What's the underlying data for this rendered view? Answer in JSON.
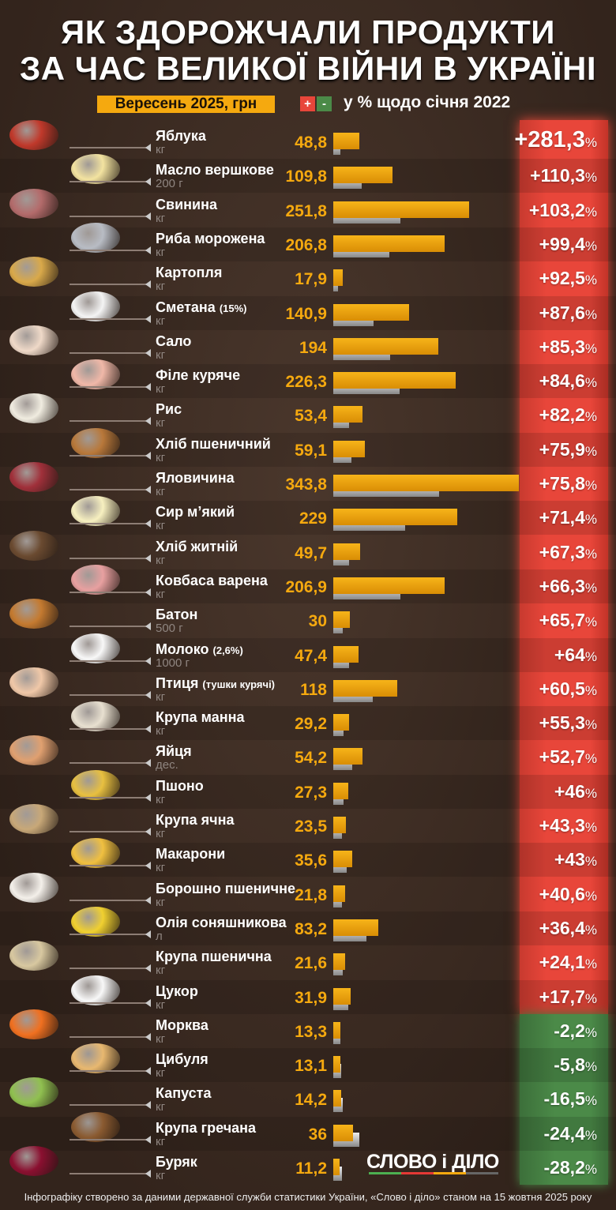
{
  "title_line1": "ЯК ЗДОРОЖЧАЛИ ПРОДУКТИ",
  "title_line2": "ЗА ЧАС ВЕЛИКОЇ ВІЙНИ В УКРАЇНІ",
  "legend": {
    "price_label": "Вересень 2025, грн",
    "plus": "+",
    "minus": "-",
    "pct_label": "у % щодо січня 2022"
  },
  "colors": {
    "bar": "#f5a90f",
    "increase": "#e8463a",
    "decrease": "#4b8a48",
    "background": "#3b2b22"
  },
  "logo": "СЛОВО і ДІЛО",
  "footer": "Інфографіку створено за даними державної служби статистики України, «Слово і діло» станом на 15 жовтня 2025 року",
  "chart_data": {
    "type": "bar",
    "title": "ЯК ЗДОРОЖЧАЛИ ПРОДУКТИ ЗА ЧАС ВЕЛИКОЇ ВІЙНИ В УКРАЇНІ",
    "orientation": "horizontal",
    "series": [
      {
        "name": "Вересень 2025, грн"
      },
      {
        "name": "у % щодо січня 2022"
      }
    ],
    "rows": [
      {
        "name": "Яблука",
        "note": "",
        "unit": "кг",
        "price": "48,8",
        "value": 48.8,
        "pct": "+281,3",
        "pct_value": 281.3,
        "color": "#c0392b"
      },
      {
        "name": "Масло вершкове",
        "note": "",
        "unit": "200 г",
        "price": "109,8",
        "value": 109.8,
        "pct": "+110,3",
        "pct_value": 110.3,
        "color": "#f3e3a0"
      },
      {
        "name": "Свинина",
        "note": "",
        "unit": "кг",
        "price": "251,8",
        "value": 251.8,
        "pct": "+103,2",
        "pct_value": 103.2,
        "color": "#b36b6b"
      },
      {
        "name": "Риба морожена",
        "note": "",
        "unit": "кг",
        "price": "206,8",
        "value": 206.8,
        "pct": "+99,4",
        "pct_value": 99.4,
        "color": "#b8bcc4"
      },
      {
        "name": "Картопля",
        "note": "",
        "unit": "кг",
        "price": "17,9",
        "value": 17.9,
        "pct": "+92,5",
        "pct_value": 92.5,
        "color": "#d9a94a"
      },
      {
        "name": "Сметана",
        "note": "(15%)",
        "unit": "кг",
        "price": "140,9",
        "value": 140.9,
        "pct": "+87,6",
        "pct_value": 87.6,
        "color": "#f4f4f4"
      },
      {
        "name": "Сало",
        "note": "",
        "unit": "кг",
        "price": "194",
        "value": 194,
        "pct": "+85,3",
        "pct_value": 85.3,
        "color": "#efd9c8"
      },
      {
        "name": "Філе куряче",
        "note": "",
        "unit": "кг",
        "price": "226,3",
        "value": 226.3,
        "pct": "+84,6",
        "pct_value": 84.6,
        "color": "#f0b8a8"
      },
      {
        "name": "Рис",
        "note": "",
        "unit": "кг",
        "price": "53,4",
        "value": 53.4,
        "pct": "+82,2",
        "pct_value": 82.2,
        "color": "#f0ece0"
      },
      {
        "name": "Хліб пшеничний",
        "note": "",
        "unit": "кг",
        "price": "59,1",
        "value": 59.1,
        "pct": "+75,9",
        "pct_value": 75.9,
        "color": "#b8783a"
      },
      {
        "name": "Яловичина",
        "note": "",
        "unit": "кг",
        "price": "343,8",
        "value": 343.8,
        "pct": "+75,8",
        "pct_value": 75.8,
        "color": "#a0303a"
      },
      {
        "name": "Сир м’який",
        "note": "",
        "unit": "кг",
        "price": "229",
        "value": 229,
        "pct": "+71,4",
        "pct_value": 71.4,
        "color": "#f7f0c0"
      },
      {
        "name": "Хліб житній",
        "note": "",
        "unit": "кг",
        "price": "49,7",
        "value": 49.7,
        "pct": "+67,3",
        "pct_value": 67.3,
        "color": "#6a4a30"
      },
      {
        "name": "Ковбаса варена",
        "note": "",
        "unit": "кг",
        "price": "206,9",
        "value": 206.9,
        "pct": "+66,3",
        "pct_value": 66.3,
        "color": "#e8a0a0"
      },
      {
        "name": "Батон",
        "note": "",
        "unit": "500 г",
        "price": "30",
        "value": 30,
        "pct": "+65,7",
        "pct_value": 65.7,
        "color": "#c47a30"
      },
      {
        "name": "Молоко",
        "note": "(2,6%)",
        "unit": "1000 г",
        "price": "47,4",
        "value": 47.4,
        "pct": "+64",
        "pct_value": 64,
        "color": "#f8f8f8"
      },
      {
        "name": "Птиця",
        "note": "(тушки курячі)",
        "unit": "кг",
        "price": "118",
        "value": 118,
        "pct": "+60,5",
        "pct_value": 60.5,
        "color": "#f0c8a8"
      },
      {
        "name": "Крупа манна",
        "note": "",
        "unit": "кг",
        "price": "29,2",
        "value": 29.2,
        "pct": "+55,3",
        "pct_value": 55.3,
        "color": "#e8e0d0"
      },
      {
        "name": "Яйця",
        "note": "",
        "unit": "дес.",
        "price": "54,2",
        "value": 54.2,
        "pct": "+52,7",
        "pct_value": 52.7,
        "color": "#e0a070"
      },
      {
        "name": "Пшоно",
        "note": "",
        "unit": "кг",
        "price": "27,3",
        "value": 27.3,
        "pct": "+46",
        "pct_value": 46,
        "color": "#e8c040"
      },
      {
        "name": "Крупа ячна",
        "note": "",
        "unit": "кг",
        "price": "23,5",
        "value": 23.5,
        "pct": "+43,3",
        "pct_value": 43.3,
        "color": "#c8a878"
      },
      {
        "name": "Макарони",
        "note": "",
        "unit": "кг",
        "price": "35,6",
        "value": 35.6,
        "pct": "+43",
        "pct_value": 43,
        "color": "#f0c040"
      },
      {
        "name": "Борошно пшеничне",
        "note": "",
        "unit": "кг",
        "price": "21,8",
        "value": 21.8,
        "pct": "+40,6",
        "pct_value": 40.6,
        "color": "#f4f0ea"
      },
      {
        "name": "Олія соняшникова",
        "note": "",
        "unit": "л",
        "price": "83,2",
        "value": 83.2,
        "pct": "+36,4",
        "pct_value": 36.4,
        "color": "#f0d030"
      },
      {
        "name": "Крупа пшенична",
        "note": "",
        "unit": "кг",
        "price": "21,6",
        "value": 21.6,
        "pct": "+24,1",
        "pct_value": 24.1,
        "color": "#d8c8a0"
      },
      {
        "name": "Цукор",
        "note": "",
        "unit": "кг",
        "price": "31,9",
        "value": 31.9,
        "pct": "+17,7",
        "pct_value": 17.7,
        "color": "#f8f8f8"
      },
      {
        "name": "Морква",
        "note": "",
        "unit": "кг",
        "price": "13,3",
        "value": 13.3,
        "pct": "-2,2",
        "pct_value": -2.2,
        "color": "#f07020"
      },
      {
        "name": "Цибуля",
        "note": "",
        "unit": "кг",
        "price": "13,1",
        "value": 13.1,
        "pct": "-5,8",
        "pct_value": -5.8,
        "color": "#e8b870"
      },
      {
        "name": "Капуста",
        "note": "",
        "unit": "кг",
        "price": "14,2",
        "value": 14.2,
        "pct": "-16,5",
        "pct_value": -16.5,
        "color": "#90c050"
      },
      {
        "name": "Крупа гречана",
        "note": "",
        "unit": "кг",
        "price": "36",
        "value": 36,
        "pct": "-24,4",
        "pct_value": -24.4,
        "color": "#8a5a30"
      },
      {
        "name": "Буряк",
        "note": "",
        "unit": "кг",
        "price": "11,2",
        "value": 11.2,
        "pct": "-28,2",
        "pct_value": -28.2,
        "color": "#8a1030"
      }
    ],
    "pct_unit": "%"
  }
}
